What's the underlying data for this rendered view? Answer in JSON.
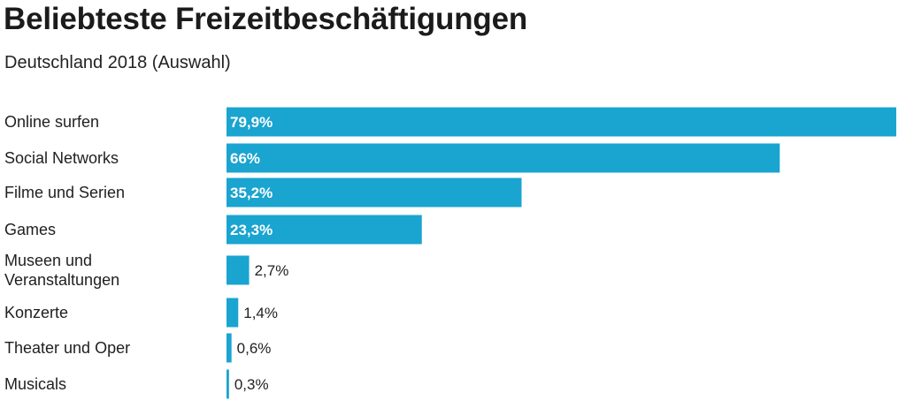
{
  "header": {
    "title": "Beliebteste Freizeitbeschäftigungen",
    "subtitle": "Deutschland 2018 (Auswahl)"
  },
  "colors": {
    "bar": "#1aa4d0",
    "inside_label": "#ffffff",
    "outside_label": "#222222"
  },
  "chart_data": {
    "type": "bar",
    "orientation": "horizontal",
    "title": "Beliebteste Freizeitbeschäftigungen",
    "subtitle": "Deutschland 2018 (Auswahl)",
    "categories": [
      [
        "Online surfen"
      ],
      [
        "Social Networks"
      ],
      [
        "Filme und Serien"
      ],
      [
        "Games"
      ],
      [
        "Museen und",
        "Veranstaltungen"
      ],
      [
        "Konzerte"
      ],
      [
        "Theater und Oper"
      ],
      [
        "Musicals"
      ]
    ],
    "values": [
      79.9,
      66,
      35.2,
      23.3,
      2.7,
      1.4,
      0.6,
      0.3
    ],
    "value_labels": [
      "79,9%",
      "66%",
      "35,2%",
      "23,3%",
      "2,7%",
      "1,4%",
      "0,6%",
      "0,3%"
    ],
    "unit": "%",
    "xlim": [
      0,
      79.9
    ],
    "grid": false,
    "legend": "none"
  }
}
